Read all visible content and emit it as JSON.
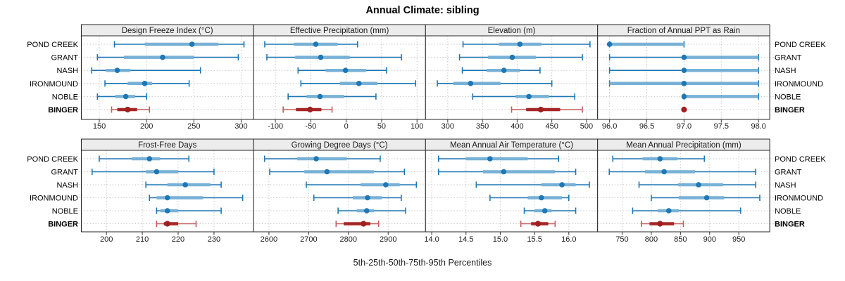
{
  "chart_data": {
    "type": "dotplot-percentile-trellis",
    "title": "Annual Climate: sibling",
    "caption": "5th-25th-50th-75th-95th Percentiles",
    "percentiles": [
      5,
      25,
      50,
      75,
      95
    ],
    "sites": [
      "POND CREEK",
      "GRANT",
      "NASH",
      "IRONMOUND",
      "NOBLE",
      "BINGER"
    ],
    "highlight_site": "BINGER",
    "legend_position": "none",
    "grid": "dotted",
    "colors": {
      "blue_whisker": "#1f77b4",
      "blue_band": "#78b1d6",
      "blue_dot": "#1f77b4",
      "red_whisker": "#c45c5c",
      "red_band": "#a62626",
      "red_dot": "#a01f1f",
      "gridline": "#c9c9c9",
      "strip_bg": "#ececec",
      "panel_border": "#262626",
      "tick": "#333333"
    },
    "panels": [
      {
        "title": "Design Freeze Index (°C)",
        "xlim": [
          131,
          313
        ],
        "tick_values": [
          150,
          200,
          250,
          300
        ],
        "tick_labels": [
          "150",
          "200",
          "250",
          "300"
        ],
        "values": [
          [
            166,
            198,
            248,
            276,
            303
          ],
          [
            148,
            176,
            217,
            250,
            297
          ],
          [
            142,
            157,
            169,
            183,
            257
          ],
          [
            156,
            180,
            198,
            206,
            245
          ],
          [
            148,
            167,
            178,
            188,
            200
          ],
          [
            163,
            169,
            180,
            190,
            203
          ]
        ]
      },
      {
        "title": "Effective Precipitation (mm)",
        "xlim": [
          -131,
          112
        ],
        "tick_values": [
          -100,
          -50,
          0,
          50,
          100
        ],
        "tick_labels": [
          "-100",
          "-50",
          "0",
          "50",
          "100"
        ],
        "values": [
          [
            -115,
            -74,
            -43,
            -12,
            16
          ],
          [
            -112,
            -72,
            -36,
            5,
            78
          ],
          [
            -68,
            -29,
            -1,
            28,
            57
          ],
          [
            -64,
            -9,
            18,
            44,
            98
          ],
          [
            -82,
            -56,
            -37,
            -3,
            42
          ],
          [
            -89,
            -71,
            -51,
            -35,
            -20
          ]
        ]
      },
      {
        "title": "Elevation (m)",
        "xlim": [
          268,
          516
        ],
        "tick_values": [
          300,
          350,
          400,
          450,
          500
        ],
        "tick_labels": [
          "300",
          "350",
          "400",
          "450",
          "500"
        ],
        "values": [
          [
            322,
            374,
            404,
            435,
            505
          ],
          [
            317,
            358,
            393,
            427,
            494
          ],
          [
            321,
            356,
            381,
            404,
            433
          ],
          [
            285,
            308,
            333,
            376,
            450
          ],
          [
            336,
            398,
            417,
            446,
            483
          ],
          [
            392,
            413,
            434,
            462,
            494
          ]
        ]
      },
      {
        "title": "Fraction of Annual PPT as Rain",
        "xlim": [
          95.84,
          98.15
        ],
        "tick_values": [
          96.0,
          96.5,
          97.0,
          97.5,
          98.0
        ],
        "tick_labels": [
          "96.0",
          "96.5",
          "97.0",
          "97.5",
          "98.0"
        ],
        "values": [
          [
            96,
            96,
            96,
            97,
            97
          ],
          [
            96,
            97,
            97,
            98,
            98
          ],
          [
            96,
            97,
            97,
            98,
            98
          ],
          [
            96,
            96,
            97,
            98,
            98
          ],
          [
            97,
            97,
            97,
            98,
            98
          ],
          [
            97,
            97,
            97,
            97,
            97
          ]
        ]
      },
      {
        "title": "Frost-Free Days",
        "xlim": [
          193,
          241
        ],
        "tick_values": [
          200,
          210,
          220,
          230
        ],
        "tick_labels": [
          "200",
          "210",
          "220",
          "230"
        ],
        "values": [
          [
            198,
            207,
            212,
            215,
            223
          ],
          [
            196,
            211,
            214,
            220,
            230
          ],
          [
            211,
            217,
            222,
            229,
            232
          ],
          [
            212,
            214,
            217,
            227,
            238
          ],
          [
            214,
            215,
            217,
            220,
            232
          ],
          [
            214,
            216,
            217,
            220,
            225
          ]
        ]
      },
      {
        "title": "Growing Degree Days (°C)",
        "xlim": [
          2561,
          2994
        ],
        "tick_values": [
          2600,
          2700,
          2800,
          2900
        ],
        "tick_labels": [
          "2600",
          "2700",
          "2800",
          "2900"
        ],
        "values": [
          [
            2589,
            2671,
            2719,
            2796,
            2880
          ],
          [
            2602,
            2689,
            2746,
            2864,
            2941
          ],
          [
            2694,
            2831,
            2894,
            2929,
            2971
          ],
          [
            2713,
            2811,
            2848,
            2884,
            2933
          ],
          [
            2774,
            2821,
            2846,
            2864,
            2944
          ],
          [
            2769,
            2788,
            2838,
            2855,
            2876
          ]
        ]
      },
      {
        "title": "Mean Annual Air Temperature (°C)",
        "xlim": [
          13.91,
          16.42
        ],
        "tick_values": [
          14.0,
          14.5,
          15.0,
          15.5,
          16.0
        ],
        "tick_labels": [
          "14.0",
          "14.5",
          "15.0",
          "15.5",
          "16.0"
        ],
        "values": [
          [
            14.1,
            14.5,
            14.85,
            15.4,
            15.85
          ],
          [
            14.1,
            14.75,
            15.05,
            15.8,
            16.1
          ],
          [
            14.65,
            15.6,
            15.9,
            16.1,
            16.3
          ],
          [
            14.85,
            15.4,
            15.6,
            15.9,
            16.0
          ],
          [
            15.35,
            15.5,
            15.65,
            15.75,
            16.1
          ],
          [
            15.3,
            15.45,
            15.55,
            15.7,
            15.8
          ]
        ]
      },
      {
        "title": "Mean Annual Precipitation (mm)",
        "xlim": [
          708,
          1003
        ],
        "tick_values": [
          750,
          800,
          850,
          900,
          950
        ],
        "tick_labels": [
          "750",
          "800",
          "850",
          "900",
          "950"
        ],
        "values": [
          [
            734,
            785,
            815,
            845,
            891
          ],
          [
            728,
            789,
            822,
            875,
            979
          ],
          [
            779,
            846,
            881,
            923,
            979
          ],
          [
            800,
            847,
            895,
            925,
            986
          ],
          [
            768,
            811,
            830,
            847,
            953
          ],
          [
            783,
            797,
            815,
            839,
            855
          ]
        ]
      }
    ]
  }
}
